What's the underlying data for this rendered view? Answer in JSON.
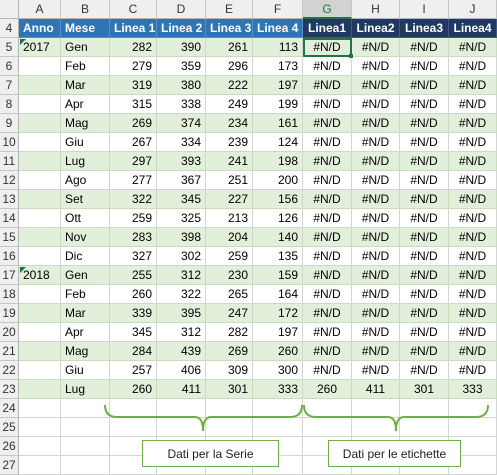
{
  "columns": [
    "A",
    "B",
    "C",
    "D",
    "E",
    "F",
    "G",
    "H",
    "I",
    "J"
  ],
  "selected_column": "G",
  "rows": [
    4,
    5,
    6,
    7,
    8,
    9,
    10,
    11,
    12,
    13,
    14,
    15,
    16,
    17,
    18,
    19,
    20,
    21,
    22,
    23,
    24,
    25,
    26,
    27
  ],
  "header": [
    "Anno",
    "Mese",
    "Linea 1",
    "Linea 2",
    "Linea 3",
    "Linea 4",
    "Linea1",
    "Linea2",
    "Linea3",
    "Linea4"
  ],
  "body": [
    [
      "2017",
      "Gen",
      "282",
      "390",
      "261",
      "113",
      "#N/D",
      "#N/D",
      "#N/D",
      "#N/D"
    ],
    [
      "",
      "Feb",
      "279",
      "359",
      "296",
      "173",
      "#N/D",
      "#N/D",
      "#N/D",
      "#N/D"
    ],
    [
      "",
      "Mar",
      "319",
      "380",
      "222",
      "197",
      "#N/D",
      "#N/D",
      "#N/D",
      "#N/D"
    ],
    [
      "",
      "Apr",
      "315",
      "338",
      "249",
      "199",
      "#N/D",
      "#N/D",
      "#N/D",
      "#N/D"
    ],
    [
      "",
      "Mag",
      "269",
      "374",
      "234",
      "161",
      "#N/D",
      "#N/D",
      "#N/D",
      "#N/D"
    ],
    [
      "",
      "Giu",
      "267",
      "334",
      "239",
      "124",
      "#N/D",
      "#N/D",
      "#N/D",
      "#N/D"
    ],
    [
      "",
      "Lug",
      "297",
      "393",
      "241",
      "198",
      "#N/D",
      "#N/D",
      "#N/D",
      "#N/D"
    ],
    [
      "",
      "Ago",
      "277",
      "367",
      "251",
      "200",
      "#N/D",
      "#N/D",
      "#N/D",
      "#N/D"
    ],
    [
      "",
      "Set",
      "322",
      "345",
      "227",
      "156",
      "#N/D",
      "#N/D",
      "#N/D",
      "#N/D"
    ],
    [
      "",
      "Ott",
      "259",
      "325",
      "213",
      "126",
      "#N/D",
      "#N/D",
      "#N/D",
      "#N/D"
    ],
    [
      "",
      "Nov",
      "283",
      "398",
      "204",
      "140",
      "#N/D",
      "#N/D",
      "#N/D",
      "#N/D"
    ],
    [
      "",
      "Dic",
      "327",
      "302",
      "259",
      "135",
      "#N/D",
      "#N/D",
      "#N/D",
      "#N/D"
    ],
    [
      "2018",
      "Gen",
      "255",
      "312",
      "230",
      "159",
      "#N/D",
      "#N/D",
      "#N/D",
      "#N/D"
    ],
    [
      "",
      "Feb",
      "260",
      "322",
      "265",
      "164",
      "#N/D",
      "#N/D",
      "#N/D",
      "#N/D"
    ],
    [
      "",
      "Mar",
      "339",
      "395",
      "247",
      "172",
      "#N/D",
      "#N/D",
      "#N/D",
      "#N/D"
    ],
    [
      "",
      "Apr",
      "345",
      "312",
      "282",
      "197",
      "#N/D",
      "#N/D",
      "#N/D",
      "#N/D"
    ],
    [
      "",
      "Mag",
      "284",
      "439",
      "269",
      "260",
      "#N/D",
      "#N/D",
      "#N/D",
      "#N/D"
    ],
    [
      "",
      "Giu",
      "257",
      "406",
      "309",
      "300",
      "#N/D",
      "#N/D",
      "#N/D",
      "#N/D"
    ],
    [
      "",
      "Lug",
      "260",
      "411",
      "301",
      "333",
      "260",
      "411",
      "301",
      "333"
    ]
  ],
  "callouts": {
    "series": "Dati per la Serie",
    "labels": "Dati per le etichette"
  },
  "colors": {
    "header_blue": "#2e75b6",
    "header_navy": "#1f3864",
    "band_green": "#e2efda",
    "accent": "#217346",
    "brace": "#70ad47"
  }
}
